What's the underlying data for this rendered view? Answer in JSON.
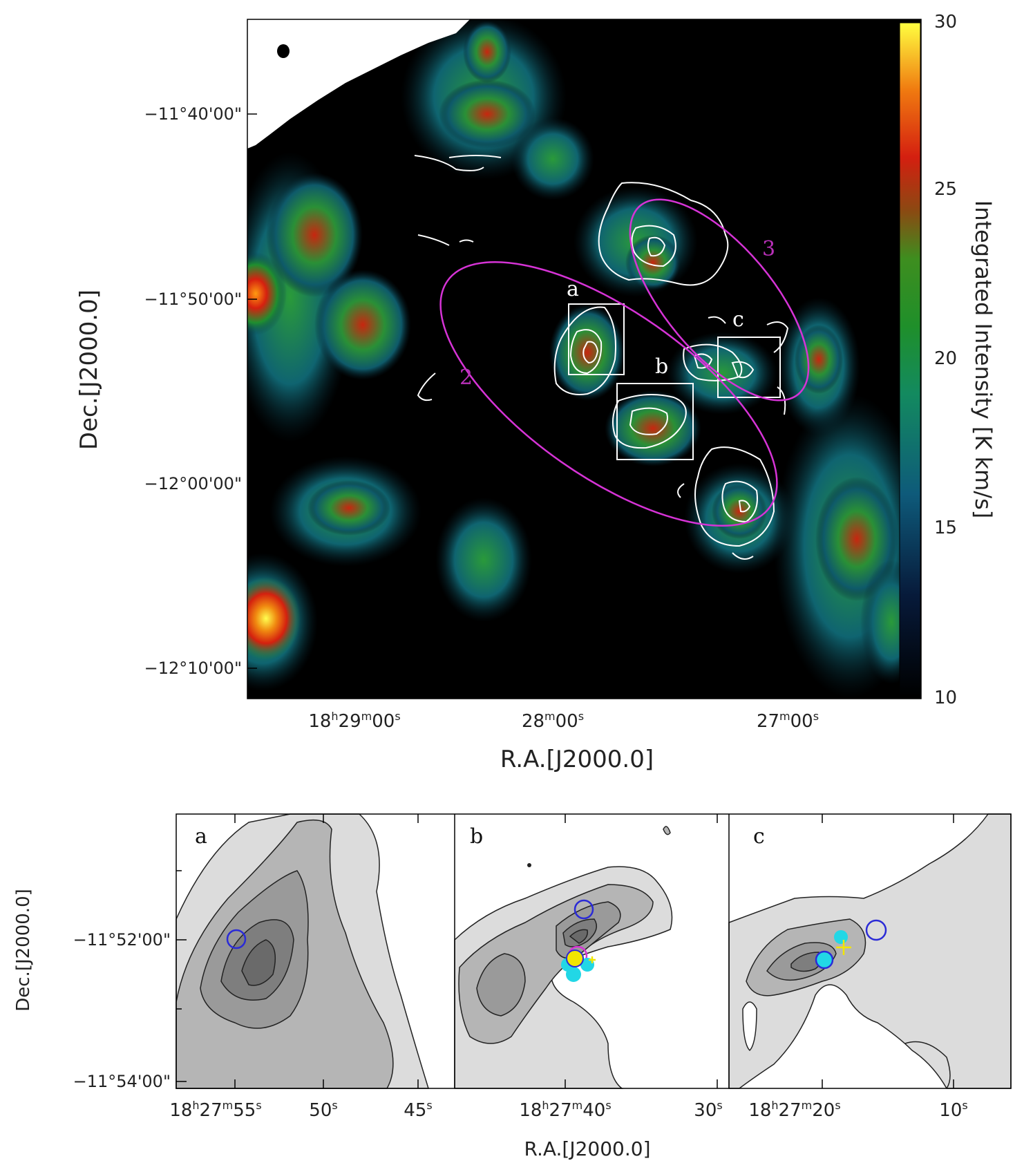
{
  "chart_data": [
    {
      "type": "heatmap",
      "title": "",
      "xlabel": "R.A.[J2000.0]",
      "ylabel": "Dec.[J2000.0]",
      "colorbar_label": "Integrated Intensity [K km/s]",
      "colorbar_ticks": [
        "30",
        "25",
        "20",
        "15",
        "10"
      ],
      "colorbar_range": [
        10,
        30
      ],
      "x_ticks": [
        {
          "h": "18",
          "m": "29",
          "s": "00"
        },
        {
          "m": "28",
          "s": "00"
        },
        {
          "m": "27",
          "s": "00"
        }
      ],
      "y_ticks": [
        "−11°40'00\"",
        "−11°50'00\"",
        "−12°00'00\"",
        "−12°10'00\""
      ],
      "regions": [
        {
          "label": "2",
          "shape": "ellipse"
        },
        {
          "label": "3",
          "shape": "ellipse"
        }
      ],
      "boxes": [
        "a",
        "b",
        "c"
      ],
      "beam": "filled circle top-left",
      "colors": {
        "ellipse": "#d633d6",
        "contour": "#ffffff",
        "background": "#000000"
      }
    },
    {
      "type": "contour",
      "panels": [
        {
          "label": "a",
          "x_ticks": [
            {
              "h": "18",
              "m": "27",
              "s": "55"
            },
            {
              "s": "50"
            },
            {
              "s": "45"
            }
          ]
        },
        {
          "label": "b",
          "x_ticks": [
            {
              "h": "18",
              "m": "27",
              "s": "40"
            },
            {
              "s": "30"
            }
          ]
        },
        {
          "label": "c",
          "x_ticks": [
            {
              "h": "18",
              "m": "27",
              "s": "20"
            },
            {
              "s": "10"
            }
          ]
        }
      ],
      "xlabel": "R.A.[J2000.0]",
      "ylabel": "Dec.[J2000.0]",
      "y_ticks": [
        "−11°52'00\"",
        "−11°54'00\""
      ],
      "marker_colors": {
        "circle": "#2b2bd6",
        "filled_circle": "#22d7e6",
        "cross": "#f2e600",
        "magenta": "#d633d6"
      }
    }
  ]
}
